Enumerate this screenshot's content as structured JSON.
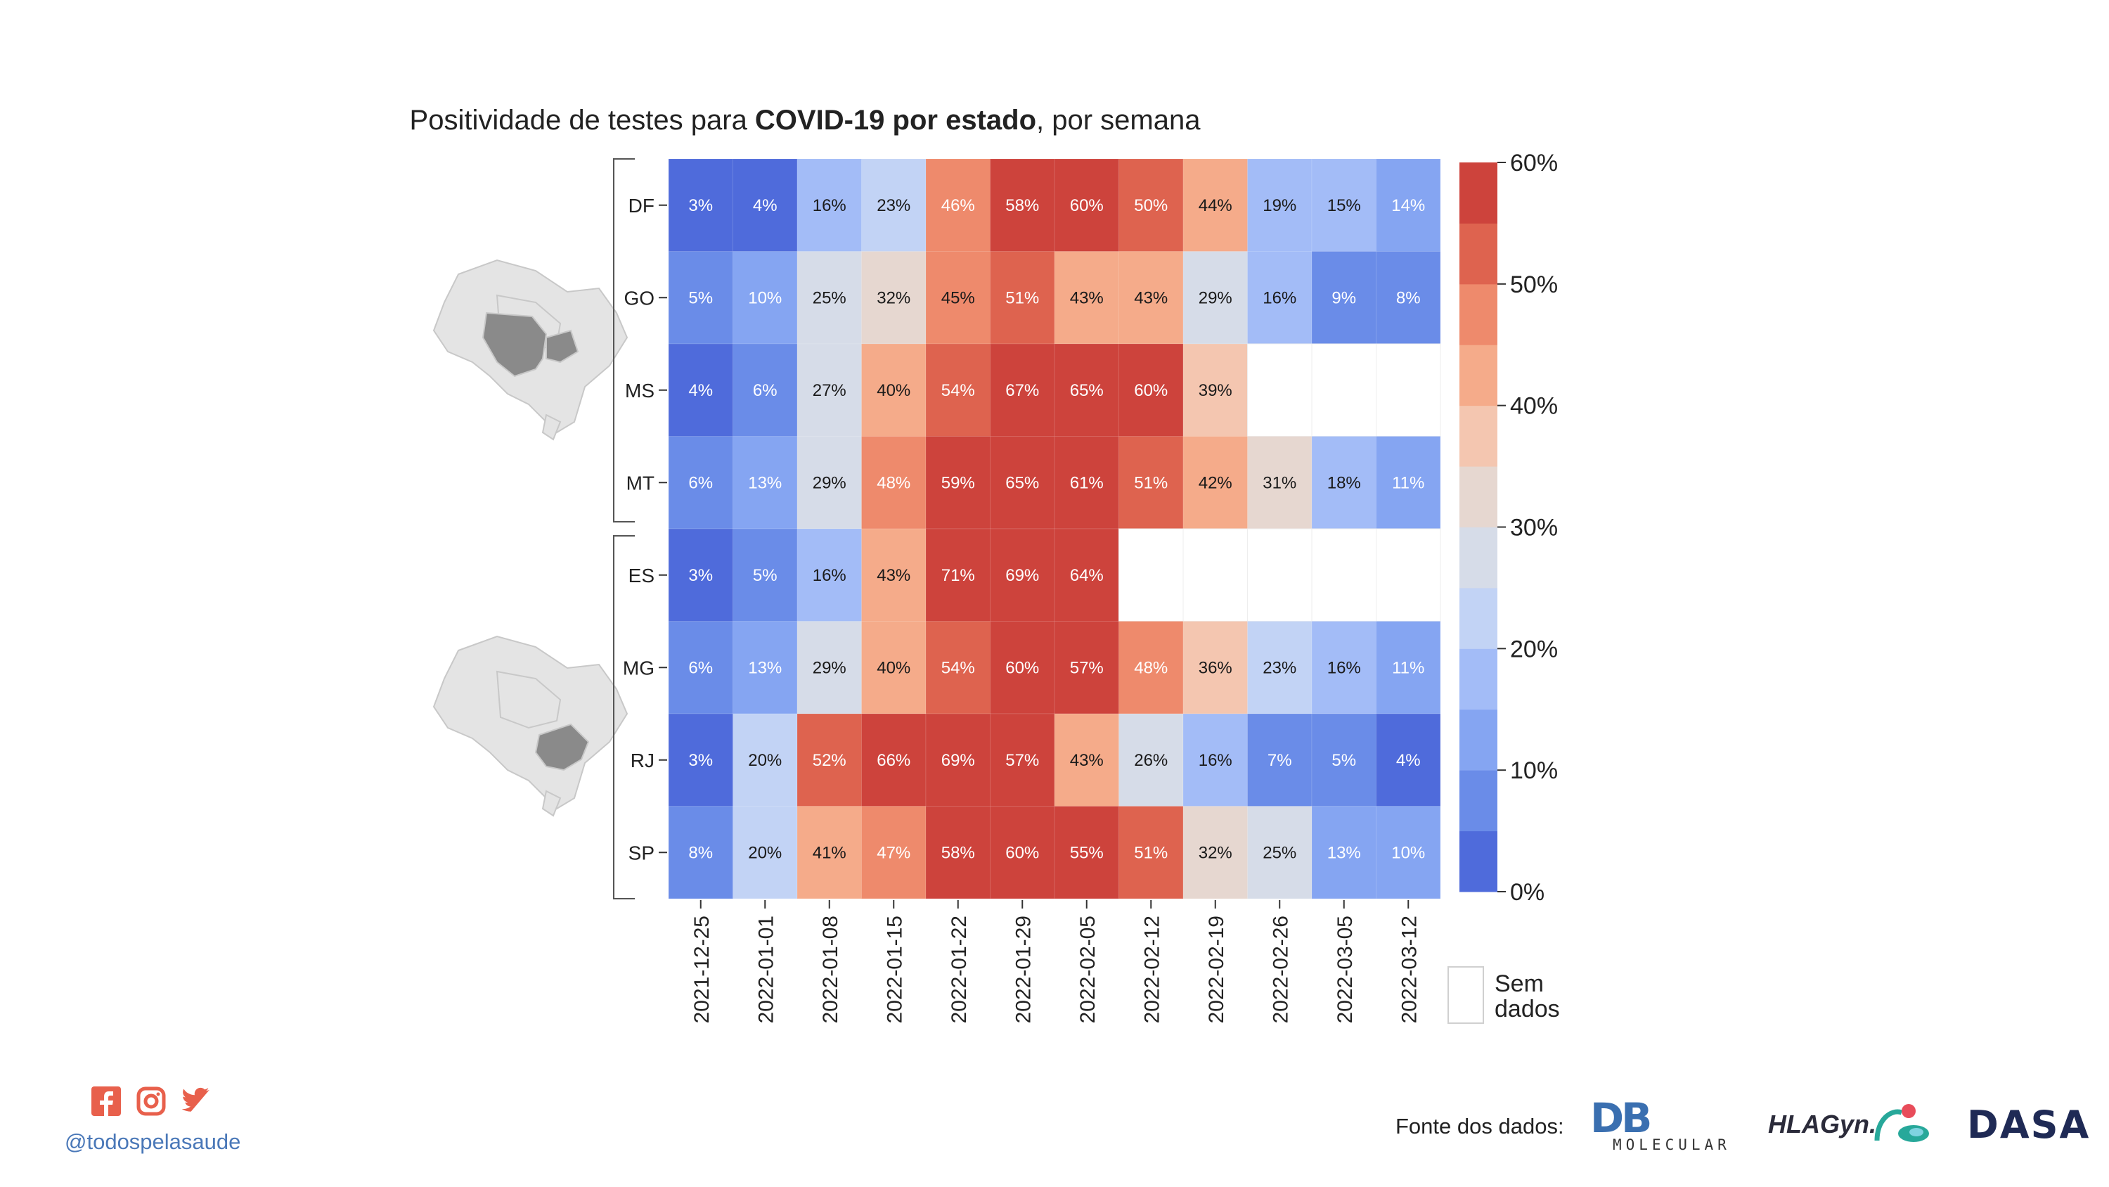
{
  "chart_data": {
    "type": "heatmap",
    "title": {
      "part1": "Positividade de testes para ",
      "bold": "COVID-19 por estado",
      "part2": ", por semana"
    },
    "rows": [
      "DF",
      "GO",
      "MS",
      "MT",
      "ES",
      "MG",
      "RJ",
      "SP"
    ],
    "columns": [
      "2021-12-25",
      "2022-01-01",
      "2022-01-08",
      "2022-01-15",
      "2022-01-22",
      "2022-01-29",
      "2022-02-05",
      "2022-02-12",
      "2022-02-19",
      "2022-02-26",
      "2022-03-05",
      "2022-03-12"
    ],
    "values": [
      [
        3,
        4,
        16,
        23,
        46,
        58,
        60,
        50,
        44,
        19,
        15,
        14
      ],
      [
        5,
        10,
        25,
        32,
        45,
        51,
        43,
        43,
        29,
        16,
        9,
        8
      ],
      [
        4,
        6,
        27,
        40,
        54,
        67,
        65,
        60,
        39,
        null,
        null,
        null
      ],
      [
        6,
        13,
        29,
        48,
        59,
        65,
        61,
        51,
        42,
        31,
        18,
        11
      ],
      [
        3,
        5,
        16,
        43,
        71,
        69,
        64,
        null,
        null,
        null,
        null,
        null
      ],
      [
        6,
        13,
        29,
        40,
        54,
        60,
        57,
        48,
        36,
        23,
        16,
        11
      ],
      [
        3,
        20,
        52,
        66,
        69,
        57,
        43,
        26,
        16,
        7,
        5,
        4
      ],
      [
        8,
        20,
        41,
        47,
        58,
        60,
        55,
        51,
        32,
        25,
        13,
        10
      ]
    ],
    "groups": [
      {
        "rows": [
          "DF",
          "GO",
          "MS",
          "MT"
        ],
        "map_icon": "brazil-map-centro-oeste-icon"
      },
      {
        "rows": [
          "ES",
          "MG",
          "RJ",
          "SP"
        ],
        "map_icon": "brazil-map-sudeste-icon"
      }
    ],
    "colorbar": {
      "range": [
        0,
        60
      ],
      "ticks": [
        "0%",
        "10%",
        "20%",
        "30%",
        "40%",
        "50%",
        "60%"
      ],
      "colors": [
        "#4f6bdb",
        "#6a8ce8",
        "#85a5f2",
        "#a3bcf7",
        "#c2d3f5",
        "#d6dce8",
        "#e6d7d0",
        "#f4c6b0",
        "#f5ab8a",
        "#ee8a6c",
        "#de634f",
        "#cd433c"
      ],
      "no_data_label_line1": "Sem",
      "no_data_label_line2": "dados",
      "no_data_color": "#ffffff"
    },
    "grid": false,
    "legend": "right"
  },
  "footer": {
    "social_icons": [
      "facebook-icon",
      "instagram-icon",
      "twitter-icon"
    ],
    "social_color": "#e8604c",
    "handle": "@todospelasaude",
    "source_label": "Fonte dos dados:",
    "logos": {
      "db": {
        "mark": "DB",
        "sub": "MOLECULAR"
      },
      "hla": "HLAGyn.",
      "dasa": "DASA"
    }
  }
}
